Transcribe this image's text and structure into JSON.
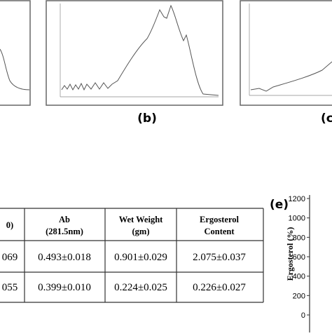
{
  "panels": [
    {
      "label": "(b)"
    },
    {
      "label": "(c"
    }
  ],
  "table": {
    "header": [
      "0)",
      [
        "Ab",
        "(281.5nm)"
      ],
      [
        "Wet Weight",
        "(gm)"
      ],
      [
        "Ergosterol",
        "Content"
      ]
    ],
    "rows": [
      [
        "069",
        "0.493±0.018",
        "0.901±0.029",
        "2.075±0.037"
      ],
      [
        "055",
        "0.399±0.010",
        "0.224±0.025",
        "0.226±0.027"
      ]
    ]
  },
  "chart_data": {
    "type": "bar",
    "label": "(e)",
    "y_label": "Ergosterol (%)",
    "ylim": [
      0,
      1200
    ],
    "yticks": [
      0,
      200,
      400,
      600,
      800,
      1000,
      1200
    ]
  }
}
